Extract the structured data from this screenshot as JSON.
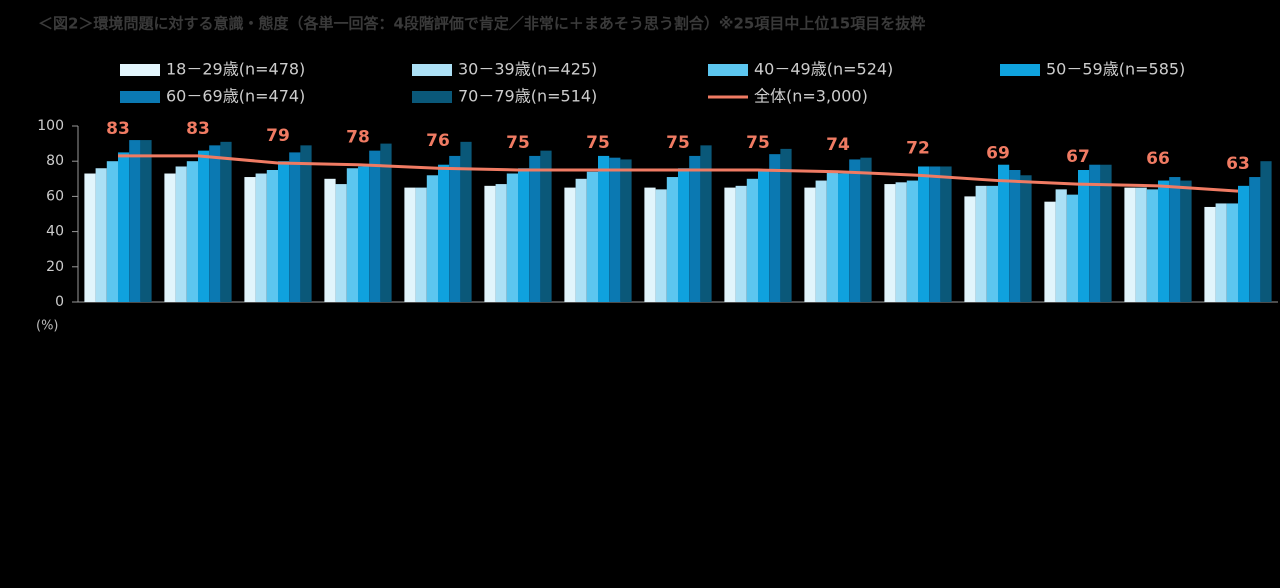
{
  "chart_data": {
    "type": "bar",
    "title": "＜図2＞環境問題に対する意識・態度（各単一回答：4段階評価で肯定／非常に＋まあそう思う割合）※25項目中上位15項目を抜粋",
    "y_label": "(%)",
    "categories": [
      null,
      null,
      null,
      null,
      null,
      null,
      null,
      null,
      null,
      null,
      null,
      null,
      null,
      null,
      null
    ],
    "ylim": [
      0,
      100
    ],
    "yticks": [
      0,
      20,
      40,
      60,
      80,
      100
    ],
    "series": [
      {
        "name": "18－29歳(n=478)",
        "type": "bar",
        "color": "#e2f5fc",
        "values": [
          73,
          73,
          71,
          70,
          65,
          66,
          65,
          65,
          65,
          65,
          67,
          60,
          57,
          65,
          54
        ]
      },
      {
        "name": "30－39歳(n=425)",
        "type": "bar",
        "color": "#ace0f5",
        "values": [
          76,
          77,
          73,
          67,
          65,
          67,
          70,
          64,
          66,
          69,
          68,
          66,
          64,
          65,
          56
        ]
      },
      {
        "name": "40－49歳(n=524)",
        "type": "bar",
        "color": "#5cc6ef",
        "values": [
          80,
          80,
          75,
          76,
          72,
          73,
          74,
          71,
          70,
          74,
          69,
          66,
          61,
          64,
          56
        ]
      },
      {
        "name": "50－59歳(n=585)",
        "type": "bar",
        "color": "#0fa2de",
        "values": [
          85,
          86,
          80,
          77,
          78,
          76,
          83,
          76,
          75,
          73,
          77,
          78,
          75,
          69,
          66
        ]
      },
      {
        "name": "60－69歳(n=474)",
        "type": "bar",
        "color": "#0b79b2",
        "values": [
          92,
          89,
          85,
          86,
          83,
          83,
          82,
          83,
          84,
          81,
          77,
          75,
          78,
          71,
          71
        ]
      },
      {
        "name": "70－79歳(n=514)",
        "type": "bar",
        "color": "#0a5879",
        "values": [
          92,
          91,
          89,
          90,
          91,
          86,
          81,
          89,
          87,
          82,
          77,
          72,
          78,
          69,
          80
        ]
      },
      {
        "name": "全体(n=3,000)",
        "type": "line",
        "color": "#f07b63",
        "values": [
          83,
          83,
          79,
          78,
          76,
          75,
          75,
          75,
          75,
          74,
          72,
          69,
          67,
          66,
          63
        ]
      }
    ]
  }
}
